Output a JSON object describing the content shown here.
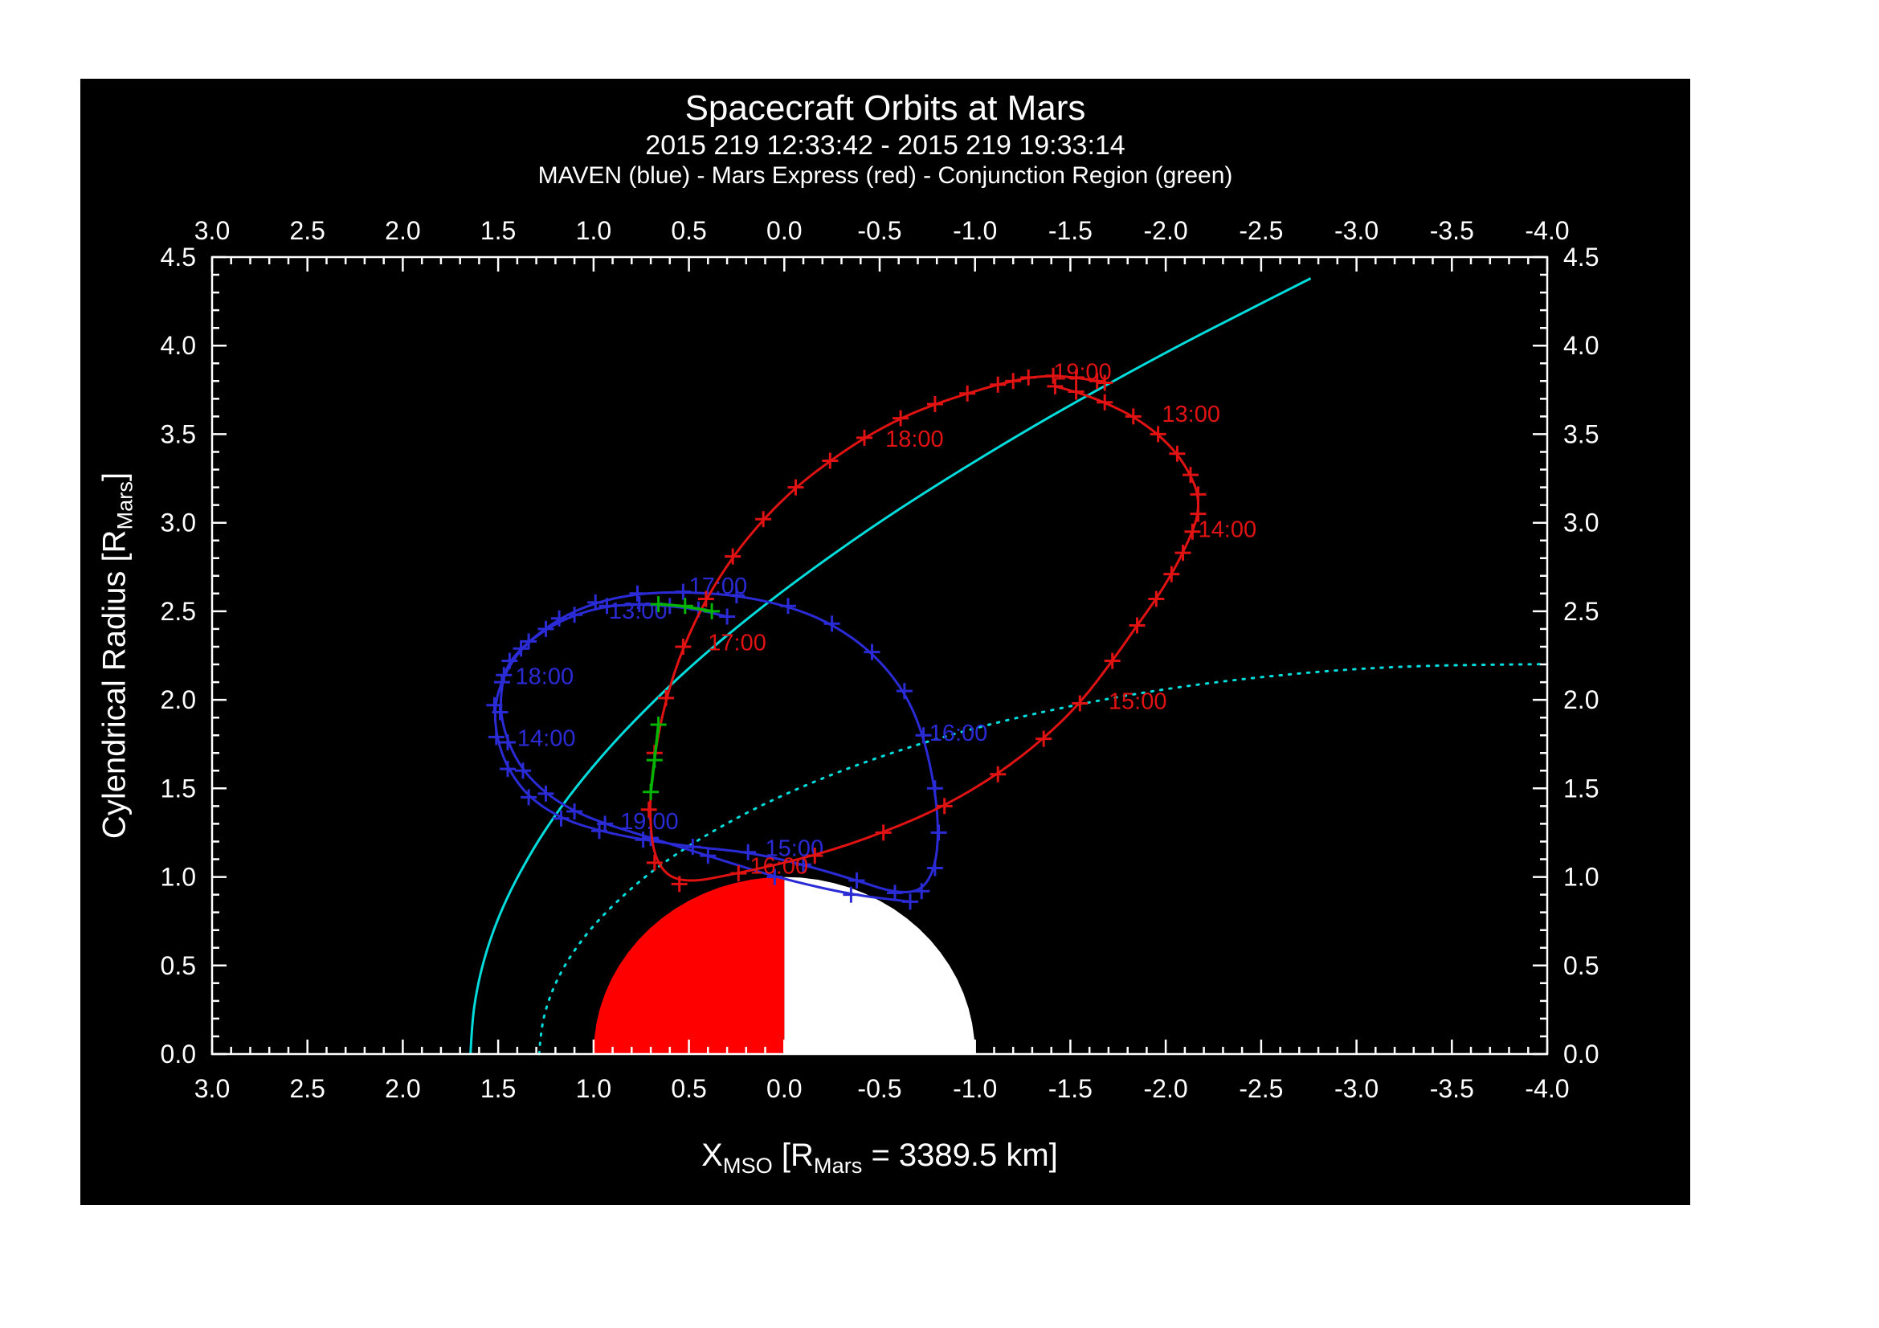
{
  "header": {
    "title": "Spacecraft Orbits at Mars",
    "subtitle": "2015 219 12:33:42 - 2015 219 19:33:14",
    "legend_line": "MAVEN (blue) - Mars Express (red) - Conjunction Region (green)"
  },
  "chart_data": {
    "type": "line",
    "title": "Spacecraft Orbits at Mars",
    "subtitle": "2015 219 12:33:42 - 2015 219 19:33:14",
    "legend": "MAVEN (blue) - Mars Express (red) - Conjunction Region (green)",
    "xlabel": {
      "pre": "X",
      "sub1": "MSO",
      "mid": " [R",
      "sub2": "Mars",
      "post": " = 3389.5 km]"
    },
    "ylabel": {
      "pre": "Cylendrical Radius [R",
      "sub": "Mars",
      "post": "]"
    },
    "x_axis": {
      "min": 3.0,
      "max": -4.0,
      "major_step": 0.5,
      "minor_step": 0.1,
      "tick_labels": [
        "3.0",
        "2.5",
        "2.0",
        "1.5",
        "1.0",
        "0.5",
        "0.0",
        "-0.5",
        "-1.0",
        "-1.5",
        "-2.0",
        "-2.5",
        "-3.0",
        "-3.5",
        "-4.0"
      ]
    },
    "y_axis": {
      "min": 0.0,
      "max": 4.5,
      "major_step": 0.5,
      "minor_step": 0.1,
      "tick_labels": [
        "0.0",
        "0.5",
        "1.0",
        "1.5",
        "2.0",
        "2.5",
        "3.0",
        "3.5",
        "4.0",
        "4.5"
      ]
    },
    "colors": {
      "axes": "#ffffff",
      "text": "#ffffff",
      "maven": "#2b2bd6",
      "mars_express": "#e01212",
      "boundary": "#00dcdc",
      "conjunction": "#00b400",
      "mars_dayside": "#ff0000",
      "mars_nightside": "#ffffff",
      "background": "#000000"
    },
    "mars": {
      "radius": 1.0,
      "positive_x_color": "#ff0000",
      "negative_x_color": "#ffffff"
    },
    "boundaries": [
      {
        "name": "boundary_solid",
        "style": "solid",
        "points": [
          [
            1.645,
            0.0
          ],
          [
            1.637,
            0.176
          ],
          [
            1.614,
            0.354
          ],
          [
            1.574,
            0.539
          ],
          [
            1.514,
            0.733
          ],
          [
            1.429,
            0.94
          ],
          [
            1.313,
            1.166
          ],
          [
            1.2,
            1.352
          ],
          [
            1.057,
            1.556
          ],
          [
            0.875,
            1.783
          ],
          [
            0.64,
            2.04
          ],
          [
            0.445,
            2.233
          ],
          [
            0.209,
            2.446
          ],
          [
            -0.08,
            2.687
          ],
          [
            -0.437,
            2.96
          ],
          [
            -0.788,
            3.207
          ],
          [
            -1.215,
            3.488
          ],
          [
            -1.597,
            3.724
          ],
          [
            -2.05,
            3.99
          ],
          [
            -2.399,
            4.183
          ],
          [
            -2.76,
            4.38
          ]
        ]
      },
      {
        "name": "boundary_dotted",
        "style": "dotted",
        "points": [
          [
            1.285,
            0.0
          ],
          [
            1.276,
            0.133
          ],
          [
            1.247,
            0.27
          ],
          [
            1.195,
            0.415
          ],
          [
            1.111,
            0.573
          ],
          [
            0.982,
            0.752
          ],
          [
            0.78,
            0.96
          ],
          [
            0.583,
            1.12
          ],
          [
            0.306,
            1.303
          ],
          [
            0.0,
            1.468
          ],
          [
            -0.358,
            1.626
          ],
          [
            -0.758,
            1.769
          ],
          [
            -1.178,
            1.891
          ],
          [
            -1.702,
            2.01
          ],
          [
            -2.214,
            2.096
          ],
          [
            -2.821,
            2.164
          ],
          [
            -3.347,
            2.194
          ],
          [
            -4.0,
            2.202
          ]
        ]
      }
    ],
    "orbits": [
      {
        "name": "MAVEN",
        "color": "#2b2bd6",
        "points": [
          [
            0.3,
            2.47
          ],
          [
            0.45,
            2.51
          ],
          [
            0.6,
            2.53
          ],
          [
            0.76,
            2.54
          ],
          [
            0.93,
            2.53
          ],
          [
            1.1,
            2.48
          ],
          [
            1.25,
            2.4
          ],
          [
            1.38,
            2.29
          ],
          [
            1.47,
            2.14
          ],
          [
            1.52,
            1.97
          ],
          [
            1.51,
            1.79
          ],
          [
            1.45,
            1.61
          ],
          [
            1.34,
            1.45
          ],
          [
            1.17,
            1.33
          ],
          [
            0.97,
            1.26
          ],
          [
            0.74,
            1.21
          ],
          [
            0.48,
            1.17
          ],
          [
            0.19,
            1.14
          ],
          [
            -0.1,
            1.07
          ],
          [
            -0.38,
            0.98
          ],
          [
            -0.58,
            0.91
          ],
          [
            -0.72,
            0.92
          ],
          [
            -0.79,
            1.05
          ],
          [
            -0.81,
            1.25
          ],
          [
            -0.79,
            1.5
          ],
          [
            -0.73,
            1.8
          ],
          [
            -0.63,
            2.05
          ],
          [
            -0.46,
            2.27
          ],
          [
            -0.25,
            2.43
          ],
          [
            -0.02,
            2.53
          ],
          [
            0.25,
            2.59
          ],
          [
            0.53,
            2.61
          ],
          [
            0.77,
            2.6
          ],
          [
            0.99,
            2.55
          ],
          [
            1.18,
            2.46
          ],
          [
            1.34,
            2.33
          ],
          [
            1.44,
            2.22
          ],
          [
            1.48,
            2.1
          ],
          [
            1.49,
            1.93
          ],
          [
            1.45,
            1.76
          ],
          [
            1.37,
            1.6
          ],
          [
            1.25,
            1.47
          ],
          [
            1.1,
            1.37
          ],
          [
            0.94,
            1.3
          ],
          [
            0.7,
            1.22
          ],
          [
            0.4,
            1.12
          ],
          [
            0.05,
            1.0
          ],
          [
            -0.35,
            0.9
          ],
          [
            -0.66,
            0.86
          ]
        ],
        "hour_labels": [
          {
            "text": "13:00",
            "x": 0.92,
            "y": 2.5
          },
          {
            "text": "14:00",
            "x": 1.4,
            "y": 1.78
          },
          {
            "text": "15:00",
            "x": 0.1,
            "y": 1.16
          },
          {
            "text": "16:00",
            "x": -0.76,
            "y": 1.81
          },
          {
            "text": "17:00",
            "x": 0.5,
            "y": 2.64
          },
          {
            "text": "18:00",
            "x": 1.41,
            "y": 2.13
          },
          {
            "text": "19:00",
            "x": 0.86,
            "y": 1.31
          }
        ]
      },
      {
        "name": "Mars Express",
        "color": "#e01212",
        "points": [
          [
            -1.42,
            3.77
          ],
          [
            -1.53,
            3.74
          ],
          [
            -1.68,
            3.68
          ],
          [
            -1.83,
            3.6
          ],
          [
            -1.96,
            3.5
          ],
          [
            -2.06,
            3.39
          ],
          [
            -2.13,
            3.27
          ],
          [
            -2.17,
            3.16
          ],
          [
            -2.17,
            3.05
          ],
          [
            -2.14,
            2.95
          ],
          [
            -2.09,
            2.83
          ],
          [
            -2.03,
            2.71
          ],
          [
            -1.95,
            2.57
          ],
          [
            -1.85,
            2.42
          ],
          [
            -1.72,
            2.22
          ],
          [
            -1.55,
            1.98
          ],
          [
            -1.36,
            1.78
          ],
          [
            -1.12,
            1.58
          ],
          [
            -0.84,
            1.4
          ],
          [
            -0.52,
            1.25
          ],
          [
            -0.16,
            1.12
          ],
          [
            0.24,
            1.02
          ],
          [
            0.55,
            0.96
          ],
          [
            0.68,
            1.08
          ],
          [
            0.71,
            1.38
          ],
          [
            0.68,
            1.7
          ],
          [
            0.62,
            2.01
          ],
          [
            0.53,
            2.3
          ],
          [
            0.41,
            2.57
          ],
          [
            0.27,
            2.81
          ],
          [
            0.11,
            3.02
          ],
          [
            -0.06,
            3.2
          ],
          [
            -0.24,
            3.35
          ],
          [
            -0.42,
            3.48
          ],
          [
            -0.61,
            3.59
          ],
          [
            -0.79,
            3.67
          ],
          [
            -0.96,
            3.73
          ],
          [
            -1.12,
            3.78
          ],
          [
            -1.2,
            3.8
          ],
          [
            -1.28,
            3.82
          ],
          [
            -1.41,
            3.83
          ],
          [
            -1.53,
            3.82
          ],
          [
            -1.64,
            3.8
          ],
          [
            -1.68,
            3.79
          ]
        ],
        "hour_labels": [
          {
            "text": "13:00",
            "x": -1.98,
            "y": 3.61
          },
          {
            "text": "14:00",
            "x": -2.17,
            "y": 2.96
          },
          {
            "text": "15:00",
            "x": -1.7,
            "y": 1.99
          },
          {
            "text": "16:00",
            "x": 0.18,
            "y": 1.06
          },
          {
            "text": "17:00",
            "x": 0.4,
            "y": 2.32
          },
          {
            "text": "18:00",
            "x": -0.53,
            "y": 3.47
          },
          {
            "text": "19:00",
            "x": -1.41,
            "y": 3.85
          }
        ]
      }
    ],
    "conjunction": {
      "color": "#00b400",
      "segments": [
        [
          [
            0.38,
            2.5
          ],
          [
            0.52,
            2.53
          ],
          [
            0.66,
            2.54
          ]
        ],
        [
          [
            0.7,
            1.48
          ],
          [
            0.68,
            1.66
          ],
          [
            0.66,
            1.86
          ]
        ]
      ]
    }
  }
}
